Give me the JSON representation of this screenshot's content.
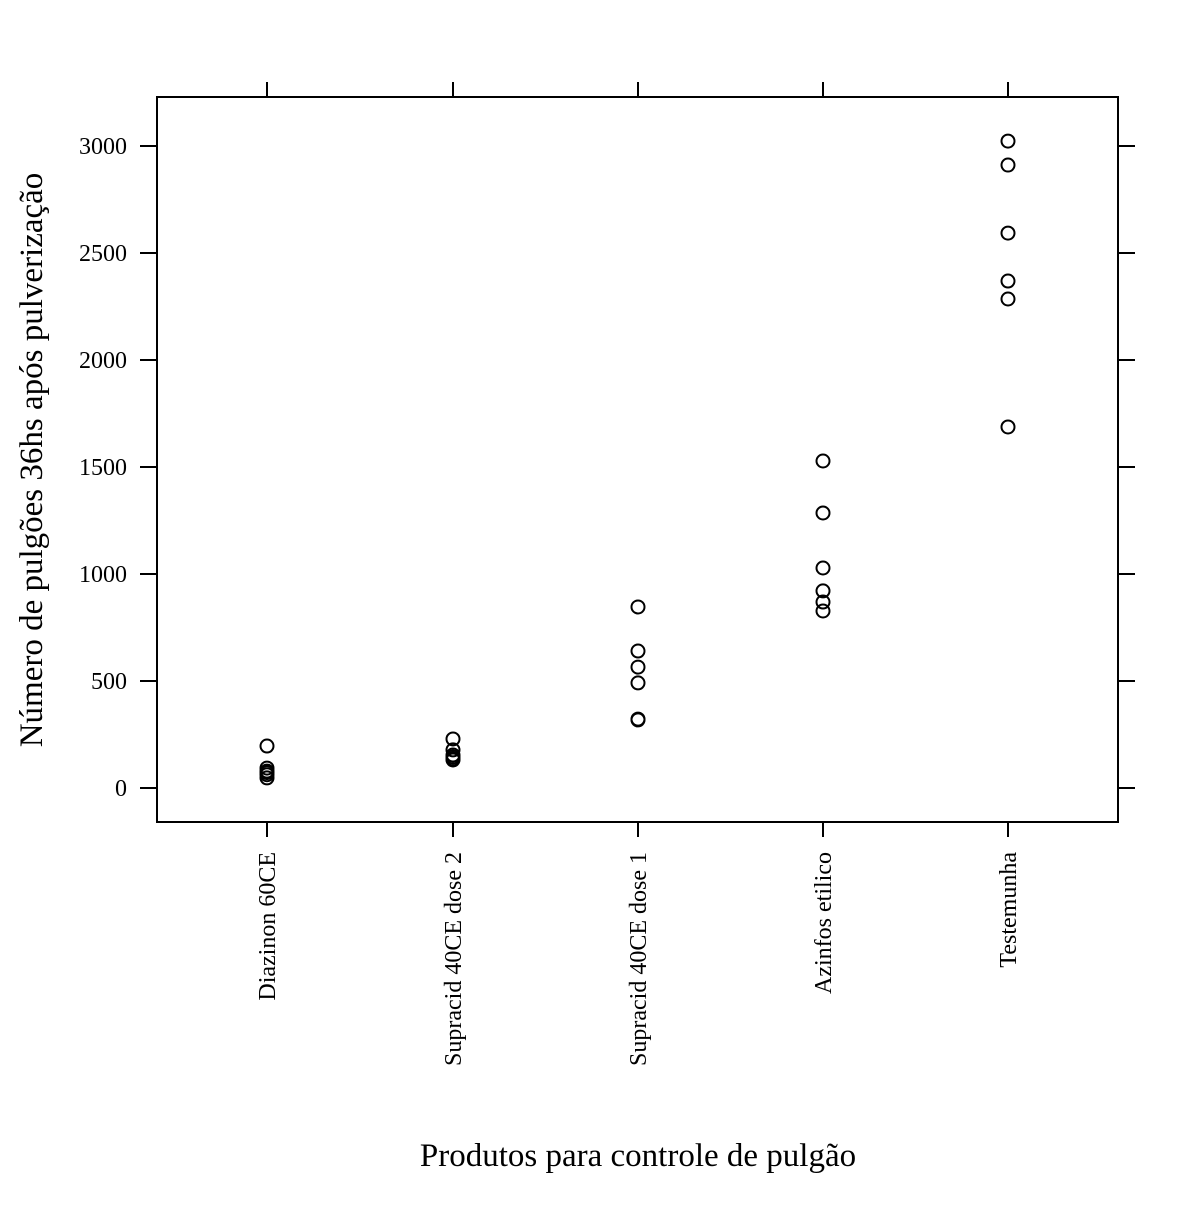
{
  "chart_data": {
    "type": "scatter",
    "xlabel": "Produtos para controle de pulgão",
    "ylabel": "Número de pulgões 36hs após pulverização",
    "categories": [
      "Diazinon 60CE",
      "Supracid 40CE dose 2",
      "Supracid 40CE dose 1",
      "Azinfos etilico",
      "Testemunha"
    ],
    "values": [
      [
        196,
        93,
        79,
        72,
        62,
        47
      ],
      [
        229,
        178,
        154,
        145,
        136,
        131
      ],
      [
        846,
        640,
        565,
        491,
        322,
        318
      ],
      [
        1528,
        1285,
        1028,
        921,
        869,
        827
      ],
      [
        3023,
        2911,
        2593,
        2369,
        2285,
        1687
      ]
    ],
    "color": "#000000",
    "ylim": [
      -159,
      3229
    ],
    "yticks": [
      0,
      500,
      1000,
      1500,
      2000,
      2500,
      3000
    ]
  }
}
